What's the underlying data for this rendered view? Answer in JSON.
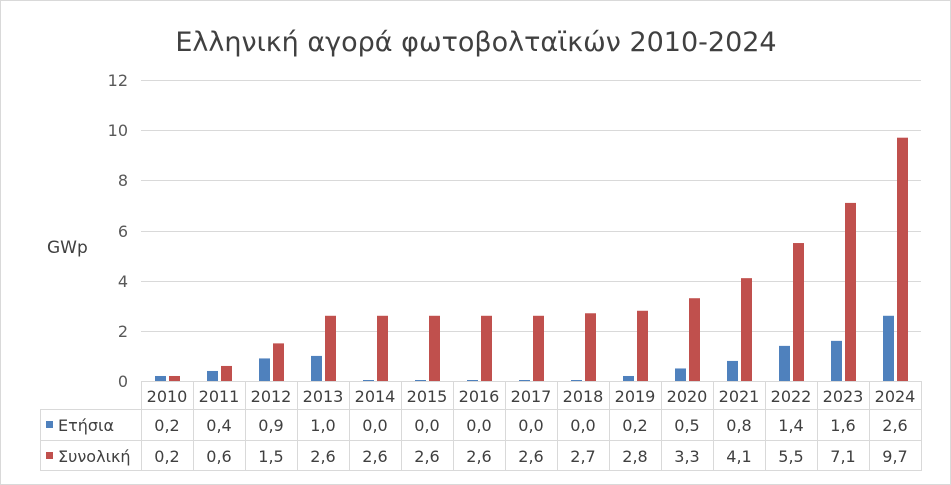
{
  "chart_data": {
    "type": "bar",
    "title": "Ελληνική αγορά φωτοβολταϊκών 2010-2024",
    "xlabel": "",
    "ylabel": "GWp",
    "ylim": [
      0,
      12
    ],
    "yticks": [
      0,
      2,
      4,
      6,
      8,
      10,
      12
    ],
    "grid": true,
    "legend": "data-table",
    "categories": [
      "2010",
      "2011",
      "2012",
      "2013",
      "2014",
      "2015",
      "2016",
      "2017",
      "2018",
      "2019",
      "2020",
      "2021",
      "2022",
      "2023",
      "2024"
    ],
    "series": [
      {
        "name": "Ετήσια",
        "color": "#4f81bd",
        "values": [
          0.2,
          0.4,
          0.9,
          1.0,
          0.0,
          0.0,
          0.0,
          0.0,
          0.0,
          0.2,
          0.5,
          0.8,
          1.4,
          1.6,
          2.6
        ],
        "table_values": [
          "0,2",
          "0,4",
          "0,9",
          "1,0",
          "0,0",
          "0,0",
          "0,0",
          "0,0",
          "0,0",
          "0,2",
          "0,5",
          "0,8",
          "1,4",
          "1,6",
          "2,6"
        ]
      },
      {
        "name": "Συνολική",
        "color": "#c0504d",
        "values": [
          0.2,
          0.6,
          1.5,
          2.6,
          2.6,
          2.6,
          2.6,
          2.6,
          2.7,
          2.8,
          3.3,
          4.1,
          5.5,
          7.1,
          9.7
        ],
        "table_values": [
          "0,2",
          "0,6",
          "1,5",
          "2,6",
          "2,6",
          "2,6",
          "2,6",
          "2,6",
          "2,7",
          "2,8",
          "3,3",
          "4,1",
          "5,5",
          "7,1",
          "9,7"
        ]
      }
    ]
  }
}
